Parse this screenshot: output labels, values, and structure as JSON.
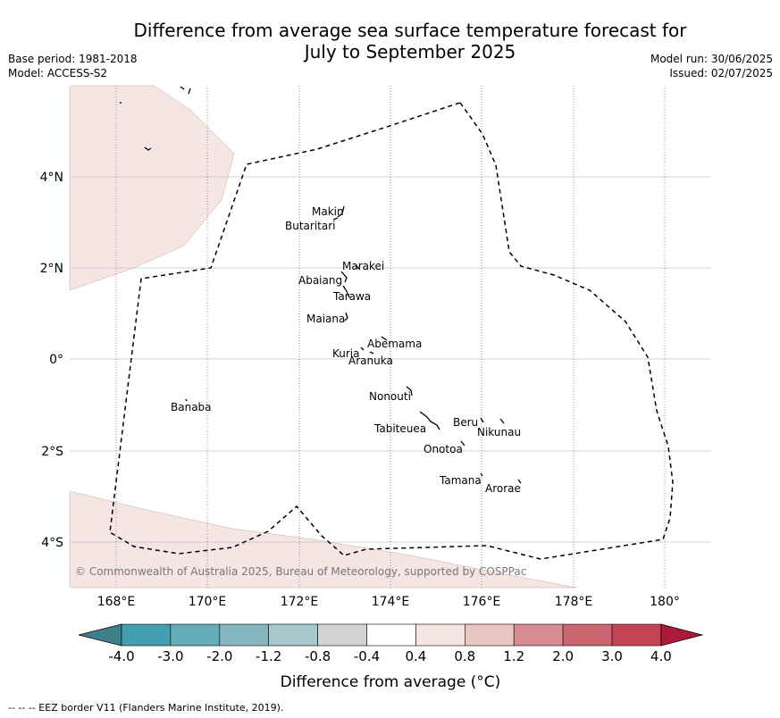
{
  "title_line1": "Difference from average sea surface temperature forecast for",
  "title_line2": "July to September 2025",
  "base_period": "Base period: 1981-2018",
  "model": "Model: ACCESS-S2",
  "model_run": "Model run: 30/06/2025",
  "issued": "Issued: 02/07/2025",
  "copyright": "© Commonwealth of Australia 2025, Bureau of Meteorology, supported by COSPPac",
  "footer": "--  --  -- EEZ border V11 (Flanders Marine Institute, 2019).",
  "map": {
    "lon_labels": [
      "168°E",
      "170°E",
      "172°E",
      "174°E",
      "176°E",
      "178°E",
      "180°"
    ],
    "lat_labels": [
      "4°N",
      "2°N",
      "0°",
      "2°S",
      "4°S"
    ],
    "places": [
      {
        "name": "Makin",
        "lon": 172.9,
        "lat": 3.2
      },
      {
        "name": "Butaritari",
        "lon": 172.8,
        "lat": 3.0
      },
      {
        "name": "Marakei",
        "lon": 173.4,
        "lat": 2.0
      },
      {
        "name": "Abaiang",
        "lon": 172.9,
        "lat": 1.8
      },
      {
        "name": "Tarawa",
        "lon": 173.0,
        "lat": 1.4
      },
      {
        "name": "Maiana",
        "lon": 173.0,
        "lat": 1.0
      },
      {
        "name": "Abemama",
        "lon": 173.9,
        "lat": 0.4
      },
      {
        "name": "Kuria",
        "lon": 173.4,
        "lat": 0.2
      },
      {
        "name": "Aranuka",
        "lon": 173.6,
        "lat": 0.2
      },
      {
        "name": "Banaba",
        "lon": 169.5,
        "lat": -0.9
      },
      {
        "name": "Nonouti",
        "lon": 174.4,
        "lat": -0.6
      },
      {
        "name": "Tabiteuea",
        "lon": 174.8,
        "lat": -1.4
      },
      {
        "name": "Beru",
        "lon": 176.0,
        "lat": -1.3
      },
      {
        "name": "Nikunau",
        "lon": 176.5,
        "lat": -1.4
      },
      {
        "name": "Onotoa",
        "lon": 175.6,
        "lat": -1.8
      },
      {
        "name": "Tamana",
        "lon": 176.0,
        "lat": -2.5
      },
      {
        "name": "Arorae",
        "lon": 176.8,
        "lat": -2.7
      }
    ]
  },
  "colorbar": {
    "title": "Difference from average (°C)",
    "ticks": [
      "-4.0",
      "-3.0",
      "-2.0",
      "-1.2",
      "-0.8",
      "-0.4",
      "0.4",
      "0.8",
      "1.2",
      "2.0",
      "3.0",
      "4.0"
    ],
    "colors": [
      "#3f7f8c",
      "#44a0b0",
      "#67adb9",
      "#86b7c0",
      "#a6c8cc",
      "#d2d4d4",
      "#ffffff",
      "#f5e6e3",
      "#e9c6c1",
      "#d88c91",
      "#cc6670",
      "#c44455",
      "#ae1a3a"
    ]
  }
}
